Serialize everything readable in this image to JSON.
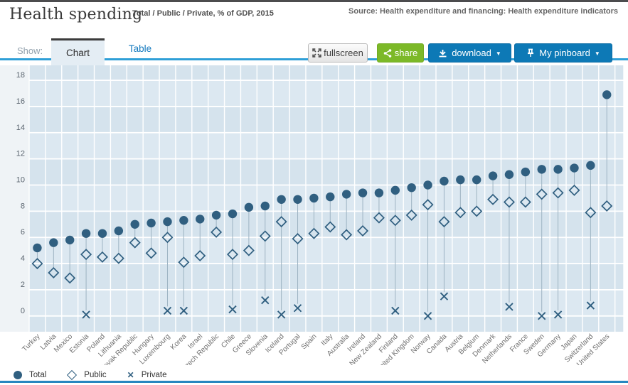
{
  "header": {
    "title": "Health spending",
    "subtitle": "Total / Public / Private, % of GDP, 2015",
    "source": "Source: Health expenditure and financing: Health expenditure indicators"
  },
  "toolbar": {
    "show_label": "Show:",
    "tabs": [
      {
        "label": "Chart",
        "active": true
      },
      {
        "label": "Table",
        "active": false
      }
    ],
    "buttons": {
      "fullscreen": "fullscreen",
      "share": "share",
      "download": "download",
      "download_caret": "▼",
      "pinboard": "My pinboard",
      "pinboard_caret": "▼"
    }
  },
  "legend": [
    {
      "marker": "circle",
      "label": "Total"
    },
    {
      "marker": "diamond",
      "label": "Public"
    },
    {
      "marker": "x",
      "label": "Private"
    }
  ],
  "colors": {
    "marker": "#305f80",
    "connector": "#9db3c2",
    "band_light": "#dce8f1",
    "band_dark": "#d5e3ed",
    "gridline": "#ffffff",
    "axis_area": "#eff3f6",
    "tick_text": "#5c6670",
    "country_text": "#6e6e6e",
    "accent_blue": "#0d79b6",
    "accent_green": "#7cb928",
    "tab_underline": "#2f9fd7"
  },
  "chart_data": {
    "type": "scatter",
    "title": "Health spending — Total / Public / Private, % of GDP, 2015",
    "xlabel": "",
    "ylabel": "% of GDP",
    "ylim": [
      0,
      18
    ],
    "ytick_step": 2,
    "yticks": [
      0,
      2,
      4,
      6,
      8,
      10,
      12,
      14,
      16,
      18
    ],
    "grid": true,
    "legend_position": "bottom-left",
    "categories": [
      "Turkey",
      "Latvia",
      "Mexico",
      "Estonia",
      "Poland",
      "Lithuania",
      "Slovak Republic",
      "Hungary",
      "Luxembourg",
      "Korea",
      "Israel",
      "Czech Republic",
      "Chile",
      "Greece",
      "Slovenia",
      "Iceland",
      "Portugal",
      "Spain",
      "Italy",
      "Australia",
      "Ireland",
      "New Zealand",
      "Finland",
      "United Kingdom",
      "Norway",
      "Canada",
      "Austria",
      "Belgium",
      "Denmark",
      "Netherlands",
      "France",
      "Sweden",
      "Germany",
      "Japan",
      "Switzerland",
      "United States"
    ],
    "series": [
      {
        "name": "Total",
        "marker": "circle",
        "values": [
          5.2,
          5.6,
          5.8,
          6.3,
          6.3,
          6.5,
          7.0,
          7.1,
          7.2,
          7.3,
          7.4,
          7.7,
          7.8,
          8.3,
          8.4,
          8.9,
          8.9,
          9.0,
          9.1,
          9.3,
          9.4,
          9.4,
          9.6,
          9.8,
          10.0,
          10.3,
          10.4,
          10.4,
          10.7,
          10.8,
          11.0,
          11.2,
          11.2,
          11.3,
          11.5,
          16.9
        ]
      },
      {
        "name": "Public",
        "marker": "diamond",
        "values": [
          4.0,
          3.3,
          2.9,
          4.7,
          4.5,
          4.4,
          5.6,
          4.8,
          6.0,
          4.1,
          4.6,
          6.4,
          4.7,
          5.0,
          6.1,
          7.2,
          5.9,
          6.3,
          6.8,
          6.2,
          6.5,
          7.5,
          7.3,
          7.7,
          8.5,
          7.2,
          7.9,
          8.0,
          8.9,
          8.7,
          8.7,
          9.3,
          9.4,
          9.6,
          7.9,
          8.4
        ]
      },
      {
        "name": "Private",
        "marker": "x",
        "values": [
          null,
          null,
          null,
          0.1,
          null,
          null,
          null,
          null,
          0.4,
          0.4,
          null,
          null,
          0.5,
          null,
          1.2,
          0.1,
          0.6,
          null,
          null,
          null,
          null,
          null,
          0.4,
          null,
          0.0,
          1.5,
          null,
          null,
          null,
          0.7,
          null,
          0.0,
          0.1,
          null,
          0.8,
          null
        ]
      }
    ]
  }
}
